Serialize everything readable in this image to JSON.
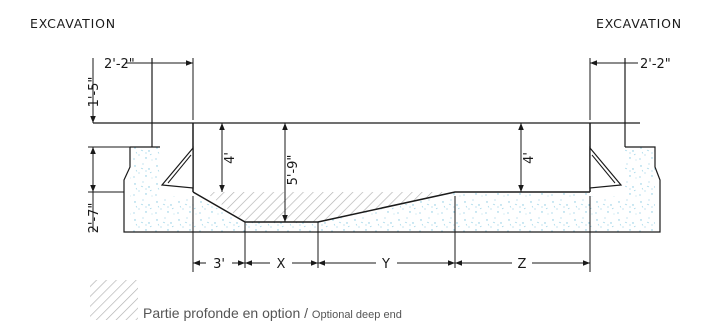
{
  "labels": {
    "excavation_left": "EXCAVATION",
    "excavation_right": "EXCAVATION"
  },
  "dimensions": {
    "wall_offset_left": "2'-2\"",
    "wall_offset_right": "2'-2\"",
    "coping_height": "1'-5\"",
    "footing_height": "2'-7\"",
    "shallow_depth_left": "4'",
    "deep_depth": "5'-9\"",
    "shallow_depth_right": "4'",
    "segment_a": "3'",
    "segment_x": "X",
    "segment_y": "Y",
    "segment_z": "Z"
  },
  "legend": {
    "text_fr": "Partie profonde en option",
    "separator": " / ",
    "text_en": "Optional deep end"
  },
  "colors": {
    "line": "#1a1a1a",
    "concrete_dots": "#7fc6e0",
    "hatch": "#b8b8b8"
  }
}
